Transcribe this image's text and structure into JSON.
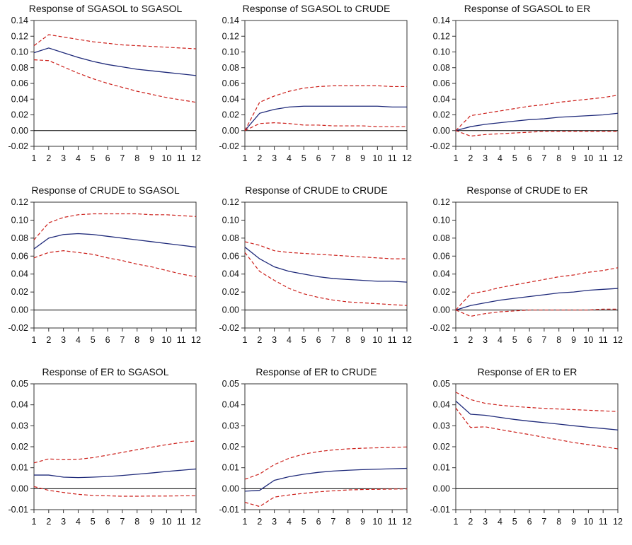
{
  "chart_data": [
    {
      "type": "line",
      "title": "Response of SGASOL to SGASOL",
      "x": [
        1,
        2,
        3,
        4,
        5,
        6,
        7,
        8,
        9,
        10,
        11,
        12
      ],
      "ylim": [
        -0.02,
        0.14
      ],
      "yticks": [
        "0.14",
        "0.12",
        "0.10",
        "0.08",
        "0.06",
        "0.04",
        "0.02",
        "0.00",
        "-0.02"
      ],
      "series": [
        {
          "role": "response",
          "values": [
            0.099,
            0.105,
            0.099,
            0.093,
            0.088,
            0.084,
            0.081,
            0.078,
            0.076,
            0.074,
            0.072,
            0.07
          ]
        },
        {
          "role": "upper",
          "values": [
            0.108,
            0.122,
            0.119,
            0.116,
            0.113,
            0.111,
            0.109,
            0.108,
            0.107,
            0.106,
            0.105,
            0.104
          ]
        },
        {
          "role": "lower",
          "values": [
            0.09,
            0.089,
            0.081,
            0.073,
            0.066,
            0.06,
            0.055,
            0.05,
            0.046,
            0.042,
            0.039,
            0.036
          ]
        }
      ]
    },
    {
      "type": "line",
      "title": "Response of SGASOL to CRUDE",
      "x": [
        1,
        2,
        3,
        4,
        5,
        6,
        7,
        8,
        9,
        10,
        11,
        12
      ],
      "ylim": [
        -0.02,
        0.14
      ],
      "yticks": [
        "0.14",
        "0.12",
        "0.10",
        "0.08",
        "0.06",
        "0.04",
        "0.02",
        "0.00",
        "-0.02"
      ],
      "series": [
        {
          "role": "response",
          "values": [
            0.0,
            0.022,
            0.027,
            0.03,
            0.031,
            0.031,
            0.031,
            0.031,
            0.031,
            0.031,
            0.03,
            0.03
          ]
        },
        {
          "role": "upper",
          "values": [
            0.0,
            0.036,
            0.044,
            0.05,
            0.054,
            0.056,
            0.057,
            0.057,
            0.057,
            0.057,
            0.056,
            0.056
          ]
        },
        {
          "role": "lower",
          "values": [
            0.0,
            0.009,
            0.01,
            0.009,
            0.007,
            0.007,
            0.006,
            0.006,
            0.006,
            0.005,
            0.005,
            0.005
          ]
        }
      ]
    },
    {
      "type": "line",
      "title": "Response of SGASOL to ER",
      "x": [
        1,
        2,
        3,
        4,
        5,
        6,
        7,
        8,
        9,
        10,
        11,
        12
      ],
      "ylim": [
        -0.02,
        0.14
      ],
      "yticks": [
        "0.14",
        "0.12",
        "0.10",
        "0.08",
        "0.06",
        "0.04",
        "0.02",
        "0.00",
        "-0.02"
      ],
      "series": [
        {
          "role": "response",
          "values": [
            0.0,
            0.005,
            0.008,
            0.01,
            0.012,
            0.014,
            0.015,
            0.017,
            0.018,
            0.019,
            0.02,
            0.022
          ]
        },
        {
          "role": "upper",
          "values": [
            0.0,
            0.019,
            0.022,
            0.025,
            0.028,
            0.031,
            0.033,
            0.036,
            0.038,
            0.04,
            0.042,
            0.045
          ]
        },
        {
          "role": "lower",
          "values": [
            0.0,
            -0.007,
            -0.005,
            -0.004,
            -0.003,
            -0.002,
            -0.001,
            -0.001,
            -0.001,
            -0.001,
            -0.001,
            -0.001
          ]
        }
      ]
    },
    {
      "type": "line",
      "title": "Response of CRUDE to SGASOL",
      "x": [
        1,
        2,
        3,
        4,
        5,
        6,
        7,
        8,
        9,
        10,
        11,
        12
      ],
      "ylim": [
        -0.02,
        0.12
      ],
      "yticks": [
        "0.12",
        "0.10",
        "0.08",
        "0.06",
        "0.04",
        "0.02",
        "0.00",
        "-0.02"
      ],
      "series": [
        {
          "role": "response",
          "values": [
            0.068,
            0.08,
            0.084,
            0.085,
            0.084,
            0.082,
            0.08,
            0.078,
            0.076,
            0.074,
            0.072,
            0.07
          ]
        },
        {
          "role": "upper",
          "values": [
            0.078,
            0.097,
            0.103,
            0.106,
            0.107,
            0.107,
            0.107,
            0.107,
            0.106,
            0.106,
            0.105,
            0.104
          ]
        },
        {
          "role": "lower",
          "values": [
            0.058,
            0.064,
            0.066,
            0.064,
            0.062,
            0.058,
            0.055,
            0.051,
            0.048,
            0.044,
            0.04,
            0.037
          ]
        }
      ]
    },
    {
      "type": "line",
      "title": "Response of CRUDE to CRUDE",
      "x": [
        1,
        2,
        3,
        4,
        5,
        6,
        7,
        8,
        9,
        10,
        11,
        12
      ],
      "ylim": [
        -0.02,
        0.12
      ],
      "yticks": [
        "0.12",
        "0.10",
        "0.08",
        "0.06",
        "0.04",
        "0.02",
        "0.00",
        "-0.02"
      ],
      "series": [
        {
          "role": "response",
          "values": [
            0.07,
            0.057,
            0.048,
            0.043,
            0.04,
            0.037,
            0.035,
            0.034,
            0.033,
            0.032,
            0.032,
            0.031
          ]
        },
        {
          "role": "upper",
          "values": [
            0.076,
            0.072,
            0.066,
            0.064,
            0.063,
            0.062,
            0.061,
            0.06,
            0.059,
            0.058,
            0.057,
            0.057
          ]
        },
        {
          "role": "lower",
          "values": [
            0.064,
            0.043,
            0.033,
            0.024,
            0.018,
            0.014,
            0.011,
            0.009,
            0.008,
            0.007,
            0.006,
            0.005
          ]
        }
      ]
    },
    {
      "type": "line",
      "title": "Response of CRUDE to ER",
      "x": [
        1,
        2,
        3,
        4,
        5,
        6,
        7,
        8,
        9,
        10,
        11,
        12
      ],
      "ylim": [
        -0.02,
        0.12
      ],
      "yticks": [
        "0.12",
        "0.10",
        "0.08",
        "0.06",
        "0.04",
        "0.02",
        "0.00",
        "-0.02"
      ],
      "series": [
        {
          "role": "response",
          "values": [
            0.0,
            0.005,
            0.008,
            0.011,
            0.013,
            0.015,
            0.017,
            0.019,
            0.02,
            0.022,
            0.023,
            0.024
          ]
        },
        {
          "role": "upper",
          "values": [
            0.0,
            0.018,
            0.021,
            0.025,
            0.028,
            0.031,
            0.034,
            0.037,
            0.039,
            0.042,
            0.044,
            0.047
          ]
        },
        {
          "role": "lower",
          "values": [
            0.0,
            -0.007,
            -0.004,
            -0.002,
            -0.001,
            0.0,
            0.0,
            0.0,
            0.0,
            0.0,
            0.001,
            0.001
          ]
        }
      ]
    },
    {
      "type": "line",
      "title": "Response of ER to SGASOL",
      "x": [
        1,
        2,
        3,
        4,
        5,
        6,
        7,
        8,
        9,
        10,
        11,
        12
      ],
      "ylim": [
        -0.01,
        0.05
      ],
      "yticks": [
        "0.05",
        "0.04",
        "0.03",
        "0.02",
        "0.01",
        "0.00",
        "-0.01"
      ],
      "series": [
        {
          "role": "response",
          "values": [
            0.0065,
            0.0065,
            0.0055,
            0.0053,
            0.0055,
            0.0058,
            0.0063,
            0.0069,
            0.0075,
            0.0082,
            0.0088,
            0.0094
          ]
        },
        {
          "role": "upper",
          "values": [
            0.0123,
            0.0142,
            0.0138,
            0.014,
            0.0148,
            0.016,
            0.0173,
            0.0186,
            0.0198,
            0.021,
            0.022,
            0.0228
          ]
        },
        {
          "role": "lower",
          "values": [
            0.001,
            -0.0008,
            -0.0018,
            -0.0027,
            -0.0032,
            -0.0034,
            -0.0036,
            -0.0036,
            -0.0035,
            -0.0035,
            -0.0034,
            -0.0034
          ]
        }
      ]
    },
    {
      "type": "line",
      "title": "Response of ER to CRUDE",
      "x": [
        1,
        2,
        3,
        4,
        5,
        6,
        7,
        8,
        9,
        10,
        11,
        12
      ],
      "ylim": [
        -0.01,
        0.05
      ],
      "yticks": [
        "0.05",
        "0.04",
        "0.03",
        "0.02",
        "0.01",
        "0.00",
        "-0.01"
      ],
      "series": [
        {
          "role": "response",
          "values": [
            -0.0012,
            -0.0008,
            0.004,
            0.0057,
            0.0069,
            0.0078,
            0.0084,
            0.0088,
            0.0091,
            0.0093,
            0.0095,
            0.0097
          ]
        },
        {
          "role": "upper",
          "values": [
            0.0045,
            0.007,
            0.0115,
            0.0145,
            0.0165,
            0.0177,
            0.0185,
            0.019,
            0.0193,
            0.0195,
            0.0197,
            0.0199
          ]
        },
        {
          "role": "lower",
          "values": [
            -0.0065,
            -0.0085,
            -0.004,
            -0.003,
            -0.0022,
            -0.0015,
            -0.001,
            -0.0006,
            -0.0004,
            -0.0003,
            -0.0002,
            -0.0001
          ]
        }
      ]
    },
    {
      "type": "line",
      "title": "Response of ER to ER",
      "x": [
        1,
        2,
        3,
        4,
        5,
        6,
        7,
        8,
        9,
        10,
        11,
        12
      ],
      "ylim": [
        -0.01,
        0.05
      ],
      "yticks": [
        "0.05",
        "0.04",
        "0.03",
        "0.02",
        "0.01",
        "0.00",
        "-0.01"
      ],
      "series": [
        {
          "role": "response",
          "values": [
            0.0418,
            0.0355,
            0.035,
            0.034,
            0.033,
            0.0322,
            0.0315,
            0.0308,
            0.03,
            0.0293,
            0.0287,
            0.028
          ]
        },
        {
          "role": "upper",
          "values": [
            0.046,
            0.0425,
            0.0407,
            0.0398,
            0.0392,
            0.0387,
            0.0383,
            0.038,
            0.0377,
            0.0374,
            0.0371,
            0.0368
          ]
        },
        {
          "role": "lower",
          "values": [
            0.0385,
            0.0292,
            0.0295,
            0.0282,
            0.027,
            0.0258,
            0.0245,
            0.0233,
            0.022,
            0.021,
            0.02,
            0.019
          ]
        }
      ]
    }
  ],
  "colors": {
    "response": "#1f2a7a",
    "band": "#cc1f1a",
    "zero_line": "#000000",
    "frame": "#333333"
  }
}
